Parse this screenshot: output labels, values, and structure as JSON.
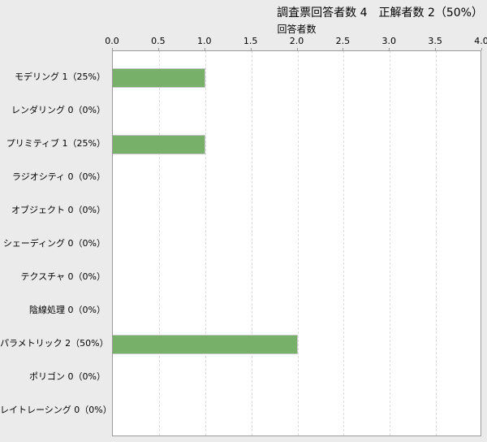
{
  "header": {
    "title": "調査票回答者数 4　正解者数 2（50%）"
  },
  "chart_data": {
    "type": "bar",
    "orientation": "horizontal",
    "title": "調査票回答者数 4　正解者数 2（50%）",
    "axis_title": "回答者数",
    "xlabel": "回答者数",
    "ylabel": "",
    "xlim": [
      0,
      4
    ],
    "x_ticks": [
      "0.0",
      "0.5",
      "1.0",
      "1.5",
      "2.0",
      "2.5",
      "3.0",
      "3.5",
      "4.0"
    ],
    "grid": "vertical-dashed",
    "legend": "none",
    "categories": [
      "モデリング",
      "レンダリング",
      "プリミティブ",
      "ラジオシティ",
      "オブジェクト",
      "シェーディング",
      "テクスチャ",
      "陰線処理",
      "パラメトリック",
      "ポリゴン",
      "レイトレーシング"
    ],
    "labels": [
      "モデリング 1（25%）",
      "レンダリング 0（0%）",
      "プリミティブ 1（25%）",
      "ラジオシティ 0（0%）",
      "オブジェクト 0（0%）",
      "シェーディング 0（0%）",
      "テクスチャ 0（0%）",
      "陰線処理 0（0%）",
      "パラメトリック 2（50%）",
      "ポリゴン 0（0%）",
      "レイトレーシング 0（0%）"
    ],
    "values": [
      1,
      0,
      1,
      0,
      0,
      0,
      0,
      0,
      2,
      0,
      0
    ],
    "percentages": [
      "25%",
      "0%",
      "25%",
      "0%",
      "0%",
      "0%",
      "0%",
      "0%",
      "50%",
      "0%",
      "0%"
    ]
  },
  "colors": {
    "bar_fill": "#77b169",
    "bar_border": "#c6c6c6",
    "page_background": "#ebebeb",
    "plot_background": "#ffffff",
    "plot_border": "#9a9a9a",
    "gridline": "#dcdcdc",
    "text": "#000000"
  }
}
